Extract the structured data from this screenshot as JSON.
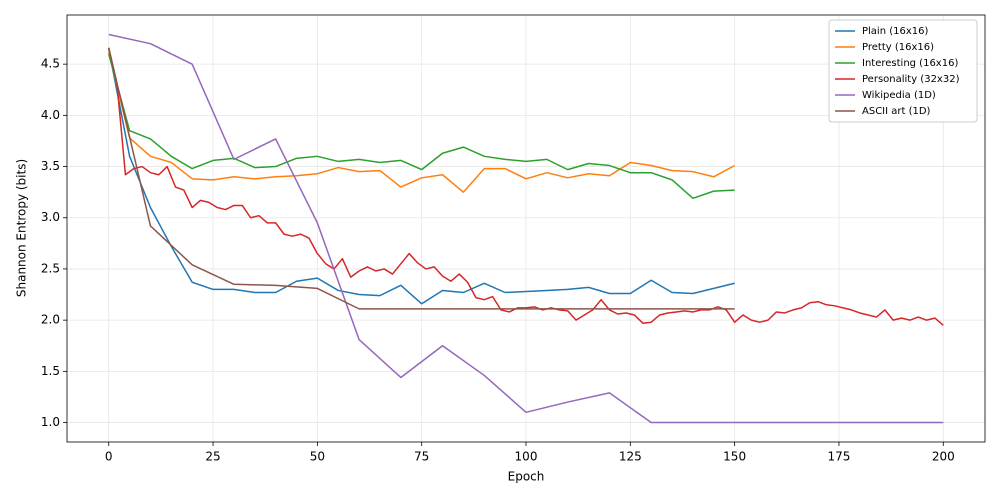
{
  "chart_data": {
    "type": "line",
    "xlabel": "Epoch",
    "ylabel": "Shannon Entropy (bits)",
    "xlim": [
      -10,
      210
    ],
    "ylim": [
      0.81,
      4.98
    ],
    "xticks": [
      0,
      25,
      50,
      75,
      100,
      125,
      150,
      175,
      200
    ],
    "yticks": [
      {
        "value": 1.0,
        "label": "1.0"
      },
      {
        "value": 1.5,
        "label": "1.5"
      },
      {
        "value": 2.0,
        "label": "2.0"
      },
      {
        "value": 2.5,
        "label": "2.5"
      },
      {
        "value": 3.0,
        "label": "3.0"
      },
      {
        "value": 3.5,
        "label": "3.5"
      },
      {
        "value": 4.0,
        "label": "4.0"
      },
      {
        "value": 4.5,
        "label": "4.5"
      }
    ],
    "grid": true,
    "legend": "upper-right",
    "series": [
      {
        "name": "Plain (16x16)",
        "color": "#1f77b4",
        "x": [
          0,
          5,
          10,
          15,
          20,
          25,
          30,
          35,
          40,
          45,
          50,
          55,
          60,
          65,
          70,
          75,
          80,
          85,
          90,
          95,
          100,
          105,
          110,
          115,
          120,
          125,
          130,
          135,
          140,
          145,
          150
        ],
        "values": [
          4.65,
          3.6,
          3.1,
          2.72,
          2.37,
          2.3,
          2.3,
          2.27,
          2.27,
          2.38,
          2.41,
          2.29,
          2.25,
          2.24,
          2.34,
          2.16,
          2.29,
          2.27,
          2.36,
          2.27,
          2.28,
          2.29,
          2.3,
          2.32,
          2.26,
          2.26,
          2.39,
          2.27,
          2.26,
          2.31,
          2.36
        ]
      },
      {
        "name": "Pretty (16x16)",
        "color": "#ff7f0e",
        "x": [
          0,
          5,
          10,
          15,
          20,
          25,
          30,
          35,
          40,
          45,
          50,
          55,
          60,
          65,
          70,
          75,
          80,
          85,
          90,
          95,
          100,
          105,
          110,
          115,
          120,
          125,
          130,
          135,
          140,
          145,
          150
        ],
        "values": [
          4.62,
          3.78,
          3.6,
          3.54,
          3.38,
          3.37,
          3.4,
          3.38,
          3.4,
          3.41,
          3.43,
          3.49,
          3.45,
          3.46,
          3.3,
          3.39,
          3.42,
          3.25,
          3.48,
          3.48,
          3.38,
          3.44,
          3.39,
          3.43,
          3.41,
          3.54,
          3.51,
          3.46,
          3.45,
          3.4,
          3.51
        ]
      },
      {
        "name": "Interesting (16x16)",
        "color": "#2ca02c",
        "x": [
          0,
          5,
          10,
          15,
          20,
          25,
          30,
          35,
          40,
          45,
          50,
          55,
          60,
          65,
          70,
          75,
          80,
          85,
          90,
          95,
          100,
          105,
          110,
          115,
          120,
          125,
          130,
          135,
          140,
          145,
          150
        ],
        "values": [
          4.6,
          3.85,
          3.77,
          3.6,
          3.48,
          3.56,
          3.58,
          3.49,
          3.5,
          3.58,
          3.6,
          3.55,
          3.57,
          3.54,
          3.56,
          3.47,
          3.63,
          3.69,
          3.6,
          3.57,
          3.55,
          3.57,
          3.47,
          3.53,
          3.51,
          3.44,
          3.44,
          3.37,
          3.19,
          3.26,
          3.27
        ]
      },
      {
        "name": "Personality (32x32)",
        "color": "#d62728",
        "x": [
          0,
          2,
          4,
          6,
          8,
          10,
          12,
          14,
          16,
          18,
          20,
          22,
          24,
          26,
          28,
          30,
          32,
          34,
          36,
          38,
          40,
          42,
          44,
          46,
          48,
          50,
          52,
          54,
          56,
          58,
          60,
          62,
          64,
          66,
          68,
          70,
          72,
          74,
          76,
          78,
          80,
          82,
          84,
          86,
          88,
          90,
          92,
          94,
          96,
          98,
          100,
          102,
          104,
          106,
          108,
          110,
          112,
          114,
          116,
          118,
          120,
          122,
          124,
          126,
          128,
          130,
          132,
          134,
          136,
          138,
          140,
          142,
          144,
          146,
          148,
          150,
          152,
          154,
          156,
          158,
          160,
          162,
          164,
          166,
          168,
          170,
          172,
          174,
          176,
          178,
          180,
          182,
          184,
          186,
          188,
          190,
          192,
          194,
          196,
          198,
          200
        ],
        "values": [
          4.66,
          4.3,
          3.42,
          3.48,
          3.5,
          3.44,
          3.42,
          3.5,
          3.3,
          3.27,
          3.1,
          3.17,
          3.15,
          3.1,
          3.08,
          3.12,
          3.12,
          3.0,
          3.02,
          2.95,
          2.95,
          2.84,
          2.82,
          2.84,
          2.8,
          2.65,
          2.55,
          2.5,
          2.6,
          2.42,
          2.48,
          2.52,
          2.48,
          2.5,
          2.45,
          2.55,
          2.65,
          2.56,
          2.5,
          2.52,
          2.43,
          2.38,
          2.45,
          2.37,
          2.22,
          2.2,
          2.23,
          2.1,
          2.08,
          2.12,
          2.12,
          2.13,
          2.1,
          2.12,
          2.1,
          2.09,
          2.0,
          2.05,
          2.1,
          2.2,
          2.1,
          2.06,
          2.07,
          2.05,
          1.97,
          1.98,
          2.05,
          2.07,
          2.08,
          2.09,
          2.08,
          2.1,
          2.1,
          2.13,
          2.1,
          1.98,
          2.05,
          2.0,
          1.98,
          2.0,
          2.08,
          2.07,
          2.1,
          2.12,
          2.17,
          2.18,
          2.15,
          2.14,
          2.12,
          2.1,
          2.07,
          2.05,
          2.03,
          2.1,
          2.0,
          2.02,
          2.0,
          2.03,
          2.0,
          2.02,
          1.95
        ]
      },
      {
        "name": "Wikipedia (1D)",
        "color": "#9467bd",
        "x": [
          0,
          10,
          20,
          30,
          40,
          50,
          60,
          70,
          80,
          90,
          100,
          110,
          120,
          130,
          140,
          150,
          160,
          170,
          180,
          190,
          200
        ],
        "values": [
          4.79,
          4.7,
          4.5,
          3.57,
          3.77,
          2.95,
          1.81,
          1.44,
          1.75,
          1.46,
          1.1,
          1.2,
          1.29,
          1.0,
          1.0,
          1.0,
          1.0,
          1.0,
          1.0,
          1.0,
          1.0
        ]
      },
      {
        "name": "ASCII art (1D)",
        "color": "#8c564b",
        "x": [
          0,
          10,
          20,
          30,
          40,
          50,
          60,
          70,
          80,
          90,
          100,
          110,
          120,
          130,
          140,
          150
        ],
        "values": [
          4.66,
          2.92,
          2.54,
          2.35,
          2.34,
          2.31,
          2.11,
          2.11,
          2.11,
          2.11,
          2.11,
          2.11,
          2.11,
          2.11,
          2.11,
          2.11
        ]
      }
    ]
  }
}
